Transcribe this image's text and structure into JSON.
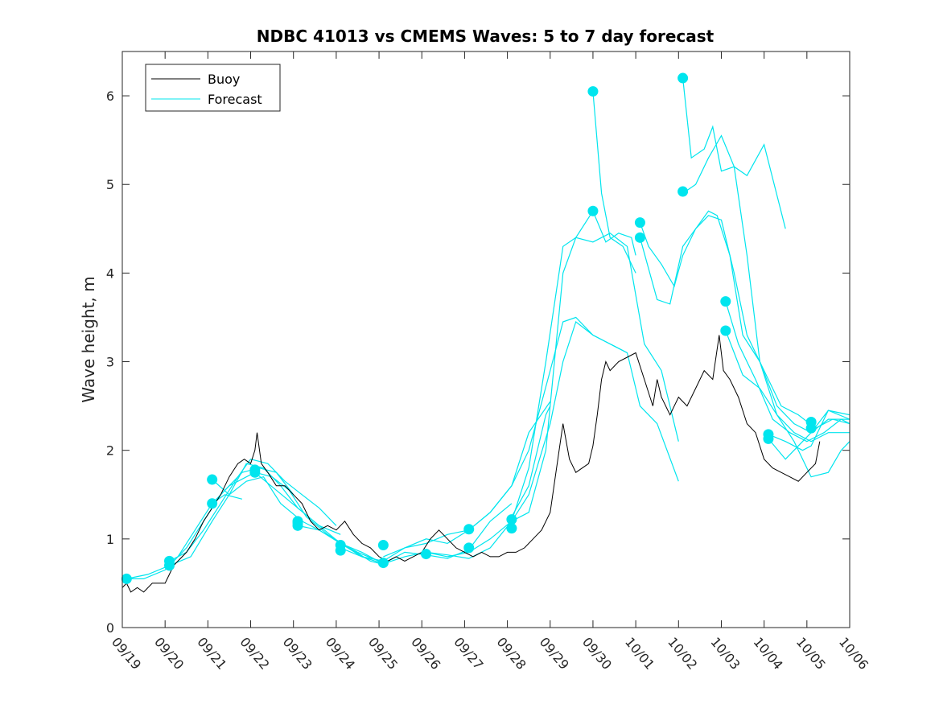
{
  "chart_data": {
    "type": "line",
    "title": "NDBC 41013 vs CMEMS Waves: 5 to 7 day forecast",
    "xlabel": "",
    "ylabel": "Wave height, m",
    "xlim": [
      0,
      17
    ],
    "ylim": [
      0,
      6.5
    ],
    "x_tick_labels": [
      "09/19",
      "09/20",
      "09/21",
      "09/22",
      "09/23",
      "09/24",
      "09/25",
      "09/26",
      "09/27",
      "09/28",
      "09/29",
      "09/30",
      "10/01",
      "10/02",
      "10/03",
      "10/04",
      "10/05",
      "10/06"
    ],
    "y_ticks": [
      0,
      1,
      2,
      3,
      4,
      5,
      6
    ],
    "legend": {
      "position": "top-left",
      "entries": [
        "Buoy",
        "Forecast"
      ]
    },
    "colors": {
      "buoy": "#000000",
      "forecast": "#00e5ee",
      "axis": "#262626"
    },
    "buoy": {
      "name": "Buoy",
      "x": [
        0,
        0.1,
        0.2,
        0.35,
        0.5,
        0.7,
        0.9,
        1.0,
        1.1,
        1.2,
        1.3,
        1.5,
        1.7,
        1.9,
        2.1,
        2.3,
        2.5,
        2.7,
        2.85,
        3.0,
        3.1,
        3.15,
        3.25,
        3.4,
        3.6,
        3.8,
        4.0,
        4.2,
        4.4,
        4.6,
        4.8,
        5.0,
        5.2,
        5.4,
        5.6,
        5.8,
        6.0,
        6.2,
        6.4,
        6.6,
        6.8,
        7.0,
        7.2,
        7.4,
        7.6,
        7.8,
        8.0,
        8.2,
        8.4,
        8.6,
        8.8,
        9.0,
        9.2,
        9.4,
        9.6,
        9.8,
        10.0,
        10.15,
        10.3,
        10.45,
        10.6,
        10.75,
        10.9,
        11.0,
        11.1,
        11.2,
        11.3,
        11.4,
        11.6,
        11.8,
        12.0,
        12.2,
        12.4,
        12.5,
        12.6,
        12.8,
        13.0,
        13.2,
        13.4,
        13.6,
        13.8,
        13.95,
        14.05,
        14.2,
        14.4,
        14.6,
        14.8,
        15.0,
        15.2,
        15.4,
        15.6,
        15.8,
        16.0,
        16.2,
        16.3
      ],
      "values": [
        0.45,
        0.5,
        0.4,
        0.45,
        0.4,
        0.5,
        0.5,
        0.5,
        0.6,
        0.7,
        0.75,
        0.85,
        1.0,
        1.2,
        1.35,
        1.5,
        1.7,
        1.85,
        1.9,
        1.85,
        2.0,
        2.2,
        1.85,
        1.75,
        1.6,
        1.6,
        1.5,
        1.4,
        1.2,
        1.1,
        1.15,
        1.1,
        1.2,
        1.05,
        0.95,
        0.9,
        0.8,
        0.75,
        0.8,
        0.75,
        0.8,
        0.85,
        1.0,
        1.1,
        1.0,
        0.9,
        0.85,
        0.8,
        0.85,
        0.8,
        0.8,
        0.85,
        0.85,
        0.9,
        1.0,
        1.1,
        1.3,
        1.8,
        2.3,
        1.9,
        1.75,
        1.8,
        1.85,
        2.05,
        2.4,
        2.8,
        3.0,
        2.9,
        3.0,
        3.05,
        3.1,
        2.8,
        2.5,
        2.8,
        2.6,
        2.4,
        2.6,
        2.5,
        2.7,
        2.9,
        2.8,
        3.3,
        2.9,
        2.8,
        2.6,
        2.3,
        2.2,
        1.9,
        1.8,
        1.75,
        1.7,
        1.65,
        1.75,
        1.85,
        2.1
      ]
    },
    "forecasts": [
      {
        "name": "Forecast",
        "x": [
          0.1,
          0.5,
          1.0,
          1.3,
          1.7,
          2.1,
          2.4,
          2.8
        ],
        "values": [
          0.55,
          0.55,
          0.65,
          0.8,
          1.1,
          1.4,
          1.5,
          1.45
        ]
      },
      {
        "name": "Forecast",
        "x": [
          0.1,
          0.6,
          1.1,
          1.5,
          1.9,
          2.3,
          2.8,
          3.2,
          3.6,
          4.0
        ],
        "values": [
          0.55,
          0.6,
          0.7,
          0.9,
          1.2,
          1.5,
          1.75,
          1.8,
          1.75,
          1.5
        ]
      },
      {
        "name": "Forecast",
        "x": [
          1.1,
          1.5,
          1.9,
          2.3,
          2.7,
          3.0,
          3.4,
          3.8,
          4.2,
          4.6,
          5.0
        ],
        "values": [
          0.75,
          0.85,
          1.1,
          1.4,
          1.7,
          1.9,
          1.85,
          1.65,
          1.5,
          1.35,
          1.15
        ]
      },
      {
        "name": "Forecast",
        "x": [
          1.1,
          1.6,
          2.1,
          2.5,
          2.9,
          3.3,
          3.7,
          4.1,
          4.6,
          5.1
        ],
        "values": [
          0.7,
          0.8,
          1.2,
          1.5,
          1.85,
          1.8,
          1.6,
          1.35,
          1.15,
          1.05
        ]
      },
      {
        "name": "Forecast",
        "x": [
          2.1,
          2.5,
          2.9,
          3.1,
          3.5,
          3.9,
          4.3,
          4.8,
          5.3,
          5.8,
          6.2
        ],
        "values": [
          1.4,
          1.6,
          1.7,
          1.75,
          1.7,
          1.55,
          1.25,
          1.05,
          0.9,
          0.75,
          0.7
        ]
      },
      {
        "name": "Forecast",
        "x": [
          2.1,
          2.5,
          2.9,
          3.3,
          3.7,
          4.2,
          4.6,
          5.1,
          5.5,
          6.0
        ],
        "values": [
          1.67,
          1.5,
          1.65,
          1.7,
          1.4,
          1.2,
          1.1,
          0.95,
          0.85,
          0.75
        ]
      },
      {
        "name": "Forecast",
        "x": [
          3.1,
          3.6,
          4.1,
          4.6,
          5.1,
          5.6,
          6.1,
          6.6,
          7.1,
          7.6,
          8.1
        ],
        "values": [
          1.75,
          1.55,
          1.35,
          1.15,
          0.95,
          0.85,
          0.72,
          0.8,
          0.85,
          0.8,
          0.85
        ]
      },
      {
        "name": "Forecast",
        "x": [
          4.1,
          4.6,
          5.1,
          5.6,
          6.1,
          6.6,
          7.1,
          7.6,
          8.1,
          8.6,
          9.1
        ],
        "values": [
          1.15,
          1.1,
          0.95,
          0.8,
          0.72,
          0.85,
          0.82,
          0.78,
          0.88,
          1.2,
          1.4
        ]
      },
      {
        "name": "Forecast",
        "x": [
          5.1,
          5.6,
          6.1,
          6.6,
          7.1,
          7.6,
          8.1,
          8.6,
          9.1,
          9.5,
          10.0
        ],
        "values": [
          0.9,
          0.8,
          0.75,
          0.9,
          1.0,
          0.95,
          1.1,
          1.3,
          1.6,
          2.2,
          2.55
        ]
      },
      {
        "name": "Forecast",
        "x": [
          6.1,
          6.6,
          7.1,
          7.6,
          8.1,
          8.6,
          9.1,
          9.5,
          10.0,
          10.3,
          10.6,
          11.0,
          11.4,
          11.8
        ],
        "values": [
          0.8,
          0.9,
          0.95,
          1.05,
          1.1,
          1.3,
          1.6,
          2.0,
          2.9,
          3.45,
          3.5,
          3.3,
          3.2,
          3.1
        ]
      },
      {
        "name": "Forecast",
        "x": [
          7.1,
          7.6,
          8.1,
          8.6,
          9.1,
          9.5,
          10.0,
          10.3,
          10.6,
          11.0,
          11.4,
          11.8,
          12.1,
          12.5,
          13.0
        ],
        "values": [
          0.85,
          0.82,
          0.78,
          0.9,
          1.2,
          1.5,
          2.3,
          3.0,
          3.45,
          3.3,
          3.2,
          3.1,
          2.5,
          2.3,
          1.65
        ]
      },
      {
        "name": "Forecast",
        "x": [
          8.1,
          8.6,
          9.1,
          9.5,
          9.9,
          10.3,
          10.6,
          11.0,
          11.4,
          11.8,
          12.2,
          12.6,
          13.0
        ],
        "values": [
          0.85,
          1.0,
          1.2,
          1.8,
          3.0,
          4.3,
          4.4,
          4.35,
          4.45,
          4.3,
          3.2,
          2.9,
          2.1
        ]
      },
      {
        "name": "Forecast",
        "x": [
          9.1,
          9.5,
          9.9,
          10.3,
          10.6,
          11.0
        ],
        "values": [
          1.2,
          1.3,
          2.0,
          4.0,
          4.4,
          4.7
        ]
      },
      {
        "name": "Forecast",
        "x": [
          9.1,
          9.5,
          9.9,
          10.0
        ],
        "values": [
          1.25,
          1.6,
          2.4,
          2.5
        ]
      },
      {
        "name": "Forecast",
        "x": [
          11.0,
          11.2,
          11.4,
          11.7,
          12.0
        ],
        "values": [
          6.05,
          4.9,
          4.4,
          4.3,
          4.0
        ]
      },
      {
        "name": "Forecast",
        "x": [
          11.0,
          11.3,
          11.6,
          11.9,
          12.0
        ],
        "values": [
          4.7,
          4.35,
          4.45,
          4.4,
          4.2
        ]
      },
      {
        "name": "Forecast",
        "x": [
          12.1,
          12.3,
          12.6,
          12.9,
          13.1,
          13.4,
          13.7,
          14.0,
          14.3,
          14.6,
          15.0,
          15.4,
          15.8,
          16.2,
          16.6,
          17.0
        ],
        "values": [
          4.57,
          4.3,
          4.1,
          3.85,
          4.2,
          4.5,
          4.65,
          4.6,
          4.0,
          3.3,
          2.9,
          2.5,
          2.4,
          2.25,
          2.35,
          2.3
        ]
      },
      {
        "name": "Forecast",
        "x": [
          12.1,
          12.5,
          12.8,
          13.1,
          13.4,
          13.7,
          13.9,
          14.2,
          14.5,
          14.9,
          15.3,
          15.7,
          16.1,
          16.5,
          17.0
        ],
        "values": [
          4.4,
          3.7,
          3.65,
          4.3,
          4.5,
          4.7,
          4.65,
          4.2,
          3.3,
          3.0,
          2.4,
          2.2,
          2.1,
          2.2,
          2.2
        ]
      },
      {
        "name": "Forecast",
        "x": [
          13.1,
          13.3,
          13.6,
          13.8,
          14.0,
          14.3,
          14.6,
          15.0,
          15.5
        ],
        "values": [
          6.2,
          5.3,
          5.4,
          5.65,
          5.15,
          5.2,
          5.1,
          5.45,
          4.5
        ]
      },
      {
        "name": "Forecast",
        "x": [
          13.1,
          13.4,
          13.7,
          14.0,
          14.3,
          14.6,
          14.9,
          15.3,
          15.7,
          16.1,
          16.5,
          17.0
        ],
        "values": [
          4.9,
          5.0,
          5.3,
          5.55,
          5.2,
          4.2,
          3.0,
          2.5,
          2.3,
          2.2,
          2.35,
          2.35
        ]
      },
      {
        "name": "Forecast",
        "x": [
          14.1,
          14.4,
          14.8,
          15.2,
          15.6,
          16.0,
          16.4,
          16.8,
          17.0
        ],
        "values": [
          3.68,
          3.2,
          2.8,
          2.35,
          2.2,
          2.1,
          2.2,
          2.35,
          2.3
        ]
      },
      {
        "name": "Forecast",
        "x": [
          14.1,
          14.5,
          14.9,
          15.3,
          15.7,
          16.1,
          16.5,
          16.8,
          17.0
        ],
        "values": [
          3.35,
          2.85,
          2.7,
          2.4,
          2.1,
          1.7,
          1.75,
          2.0,
          2.1
        ]
      },
      {
        "name": "Forecast",
        "x": [
          15.1,
          15.5,
          15.9,
          16.1,
          16.5,
          17.0
        ],
        "values": [
          2.18,
          2.1,
          2.0,
          2.05,
          2.45,
          2.4
        ]
      },
      {
        "name": "Forecast",
        "x": [
          15.1,
          15.5,
          16.1,
          16.5,
          17.0
        ],
        "values": [
          2.13,
          1.9,
          2.2,
          2.45,
          2.35
        ]
      }
    ],
    "forecast_start_points": {
      "x": [
        0.1,
        1.1,
        1.1,
        2.1,
        2.1,
        3.1,
        3.1,
        4.1,
        4.1,
        4.1,
        5.1,
        5.1,
        6.1,
        6.1,
        7.1,
        8.1,
        8.1,
        9.1,
        9.1,
        11.0,
        11.0,
        12.1,
        12.1,
        13.1,
        13.1,
        14.1,
        14.1,
        15.1,
        15.1,
        16.1,
        16.1
      ],
      "values": [
        0.55,
        0.75,
        0.7,
        1.67,
        1.4,
        1.78,
        1.75,
        1.2,
        1.15,
        1.18,
        0.93,
        0.87,
        0.93,
        0.73,
        0.83,
        1.11,
        0.9,
        1.22,
        1.12,
        6.05,
        4.7,
        4.57,
        4.4,
        6.2,
        4.92,
        3.68,
        3.35,
        2.18,
        2.13,
        2.32,
        2.25
      ]
    }
  }
}
